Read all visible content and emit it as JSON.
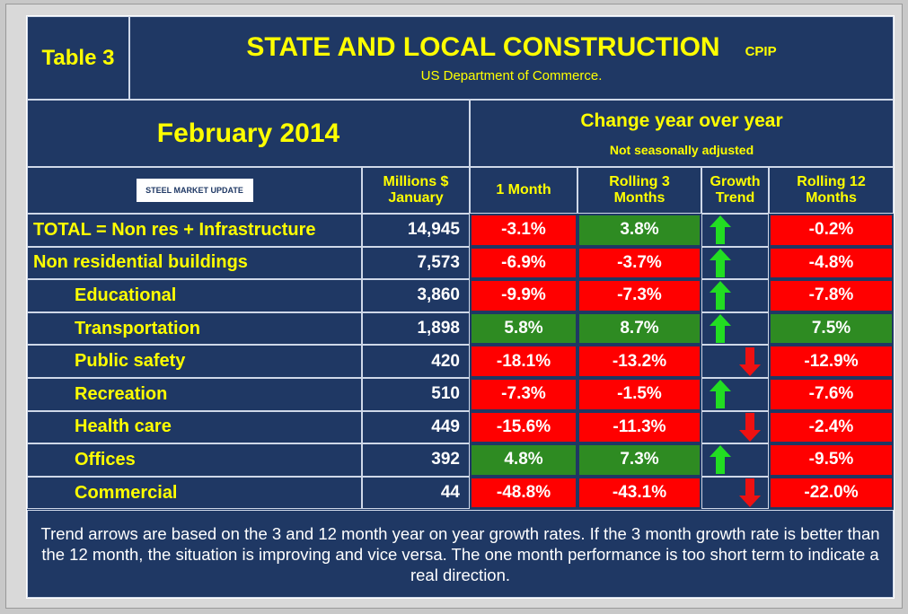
{
  "header": {
    "table_label": "Table 3",
    "title": "STATE AND LOCAL CONSTRUCTION",
    "tag": "CPIP",
    "source": "US Department of Commerce.",
    "period": "February 2014",
    "group_header": "Change year over year",
    "group_note": "Not seasonally adjusted",
    "logo": "STEEL MARKET UPDATE"
  },
  "table": {
    "columns": [
      "Millions $ January",
      "1 Month",
      "Rolling 3 Months",
      "Growth Trend",
      "Rolling 12 Months"
    ],
    "rows": [
      [
        "TOTAL = Non res + Infrastructure",
        "14,945",
        "-3.1%",
        "3.8%",
        "up",
        "-0.2%"
      ],
      [
        "Non residential buildings",
        "7,573",
        "-6.9%",
        "-3.7%",
        "up",
        "-4.8%"
      ],
      [
        "Educational",
        "3,860",
        "-9.9%",
        "-7.3%",
        "up",
        "-7.8%"
      ],
      [
        "Transportation",
        "1,898",
        "5.8%",
        "8.7%",
        "up",
        "7.5%"
      ],
      [
        "Public safety",
        "420",
        "-18.1%",
        "-13.2%",
        "down",
        "-12.9%"
      ],
      [
        "Recreation",
        "510",
        "-7.3%",
        "-1.5%",
        "up",
        "-7.6%"
      ],
      [
        "Health care",
        "449",
        "-15.6%",
        "-11.3%",
        "down",
        "-2.4%"
      ],
      [
        "Offices",
        "392",
        "4.8%",
        "7.3%",
        "up",
        "-9.5%"
      ],
      [
        "Commercial",
        "44",
        "-48.8%",
        "-43.1%",
        "down",
        "-22.0%"
      ]
    ]
  },
  "footer": {
    "note": "Trend arrows are based on the 3 and 12 month year on year growth rates. If the 3 month growth rate is better than the 12 month, the situation is improving and vice versa. The one month performance is too short term to indicate a real direction."
  }
}
